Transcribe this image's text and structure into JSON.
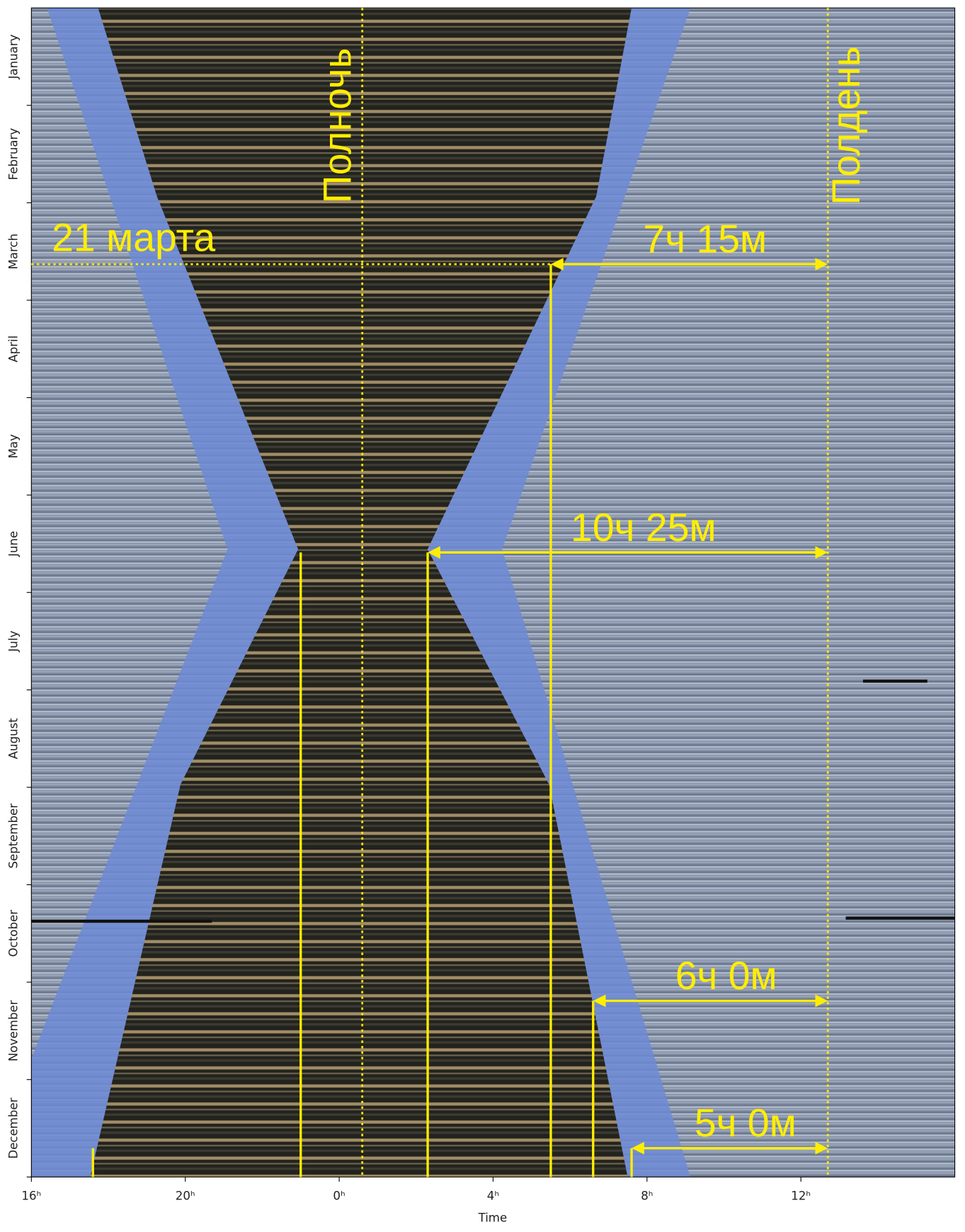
{
  "chart_data": {
    "type": "image",
    "xlabel": "Time",
    "xlim": [
      16,
      40
    ],
    "xticks": [
      {
        "value": 16,
        "label": "16ʰ"
      },
      {
        "value": 20,
        "label": "20ʰ"
      },
      {
        "value": 24,
        "label": "0ʰ"
      },
      {
        "value": 28,
        "label": "4ʰ"
      },
      {
        "value": 32,
        "label": "8ʰ"
      },
      {
        "value": 36,
        "label": "12ʰ"
      }
    ],
    "categories": [
      "January",
      "February",
      "March",
      "April",
      "May",
      "June",
      "July",
      "August",
      "September",
      "October",
      "November",
      "December"
    ],
    "ylim": [
      0,
      365
    ],
    "vlines": [
      {
        "label": "Полночь",
        "x": 24.6
      },
      {
        "label": "Полдень",
        "x": 36.7
      }
    ],
    "hline": {
      "label": "21 марта",
      "y": 80
    },
    "arrows": [
      {
        "label": "7ч 15м",
        "x": 29.5,
        "y": 80
      },
      {
        "label": "10ч 25м",
        "x": 26.3,
        "y": 170
      },
      {
        "label": "6ч 0м",
        "x": 30.6,
        "y": 310
      },
      {
        "label": "5ч 0м",
        "x": 31.6,
        "y": 356
      }
    ],
    "guides": [
      {
        "x": 17.6,
        "y": 356
      },
      {
        "x": 23.0,
        "y": 170
      }
    ]
  }
}
